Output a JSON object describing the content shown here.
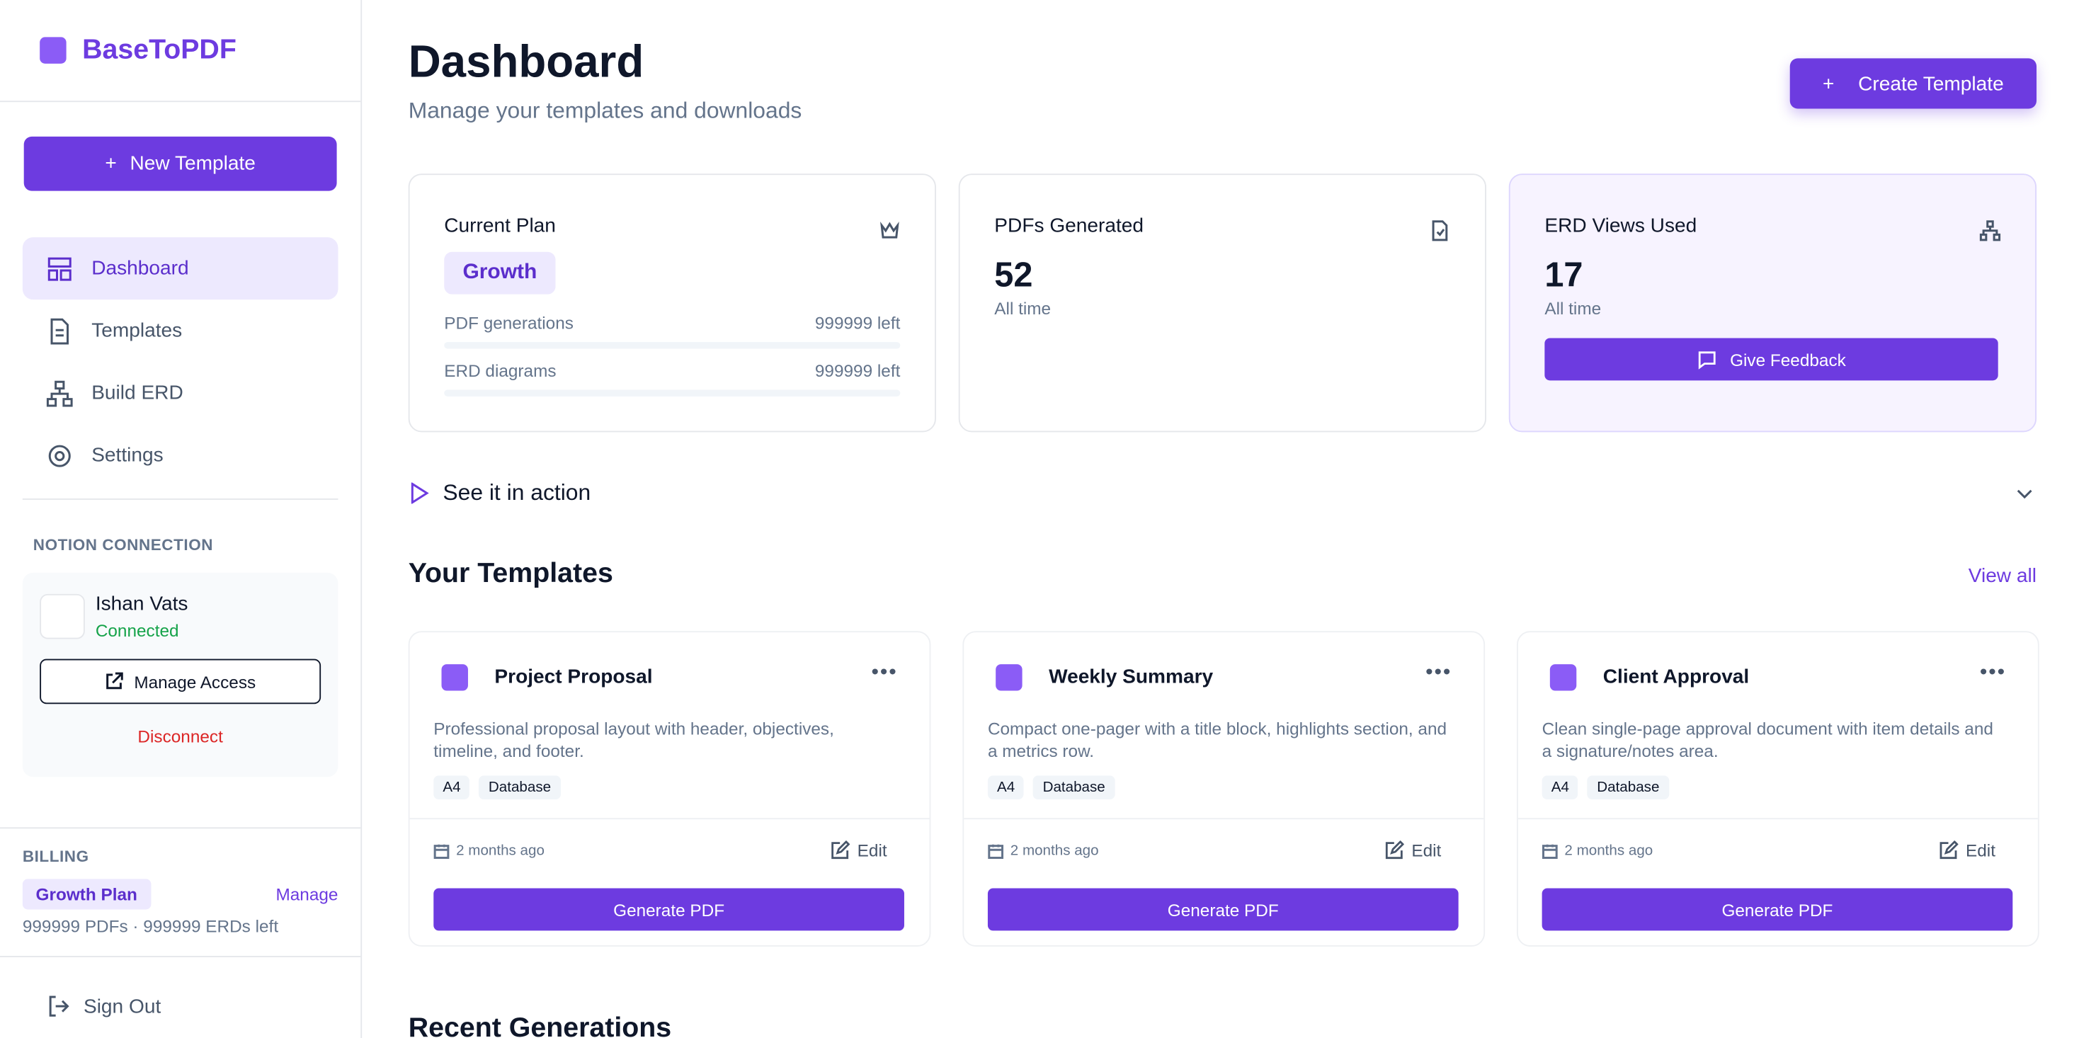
{
  "sidebar": {
    "brand": "BaseToPDF",
    "new_template": "New Template",
    "nav": [
      "Dashboard",
      "Templates",
      "Build ERD",
      "Settings"
    ],
    "notion": {
      "heading": "NOTION CONNECTION",
      "user": "Ishan Vats",
      "status": "Connected",
      "manage": "Manage Access",
      "disconnect": "Disconnect"
    },
    "billing": {
      "heading": "BILLING",
      "plan": "Growth Plan",
      "manage": "Manage",
      "usage": "999999 PDFs · 999999 ERDs left"
    },
    "sign_out": "Sign Out"
  },
  "header": {
    "title": "Dashboard",
    "subtitle": "Manage your templates and downloads",
    "create": "Create Template"
  },
  "stats": {
    "plan": {
      "label": "Current Plan",
      "plan": "Growth",
      "rows": [
        {
          "label": "PDF generations",
          "value": "999999 left"
        },
        {
          "label": "ERD diagrams",
          "value": "999999 left"
        }
      ]
    },
    "pdfs": {
      "label": "PDFs Generated",
      "value": 52,
      "note": "All time"
    },
    "erd": {
      "label": "ERD Views Used",
      "value": 17,
      "note": "All time",
      "button": "Give Feedback"
    }
  },
  "demo": "See it in action",
  "templates": {
    "title": "Your Templates",
    "view_all": "View all",
    "items": [
      {
        "name": "Project Proposal",
        "description": "Professional proposal layout with header, objectives, timeline, and footer.",
        "tags": [
          "A4",
          "Database"
        ],
        "date": "2 months ago",
        "edit": "Edit",
        "action": "Generate PDF"
      },
      {
        "name": "Weekly Summary",
        "description": "Compact one-pager with a title block, highlights section, and a metrics row.",
        "tags": [
          "A4",
          "Database"
        ],
        "date": "2 months ago",
        "edit": "Edit",
        "action": "Generate PDF"
      },
      {
        "name": "Client Approval",
        "description": "Clean single-page approval document with item details and a signature/notes area.",
        "tags": [
          "A4",
          "Database"
        ],
        "date": "2 months ago",
        "edit": "Edit",
        "action": "Generate PDF"
      }
    ]
  },
  "recent": {
    "title": "Recent Generations"
  }
}
